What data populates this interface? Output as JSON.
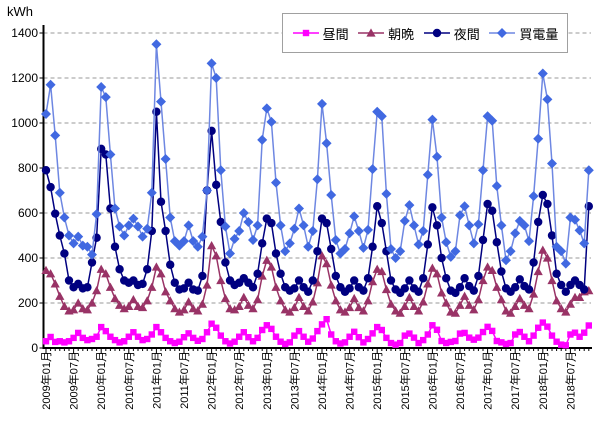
{
  "chart_data": {
    "type": "line",
    "unit_label": "kWh",
    "legend_position": "top",
    "grid": "horizontal-dashed",
    "colors": {
      "grid": "#999999",
      "axis": "#000000",
      "legend_border": "#a0a0a0",
      "background": "#ffffff"
    },
    "y_axis": {
      "min": 0,
      "max": 1400,
      "step": 200,
      "tick_labels": [
        "0",
        "200",
        "400",
        "600",
        "800",
        "1000",
        "1200",
        "1400"
      ]
    },
    "x_axis": {
      "months_per_label": 6,
      "total_points": 119,
      "start": "2009-01",
      "end": "2018-11",
      "tick_labels": [
        "2009年01月",
        "2009年07月",
        "2010年01月",
        "2010年07月",
        "2011年01月",
        "2011年07月",
        "2012年01月",
        "2012年07月",
        "2013年01月",
        "2013年07月",
        "2014年01月",
        "2014年07月",
        "2015年01月",
        "2015年07月",
        "2016年01月",
        "2016年07月",
        "2017年01月",
        "2017年07月",
        "2018年01月",
        "2018年07月"
      ]
    },
    "series": [
      {
        "id": "daytime",
        "name": "昼間",
        "marker": "square",
        "color": "#FF00FF",
        "line_color": "#FF00FF",
        "values": [
          30,
          49,
          27,
          30,
          25,
          30,
          45,
          67,
          45,
          35,
          40,
          50,
          93,
          75,
          50,
          35,
          25,
          30,
          50,
          70,
          50,
          35,
          40,
          60,
          93,
          70,
          45,
          30,
          22,
          28,
          48,
          65,
          45,
          32,
          40,
          70,
          108,
          90,
          55,
          30,
          20,
          28,
          50,
          70,
          48,
          30,
          45,
          80,
          101,
          85,
          50,
          28,
          18,
          25,
          55,
          75,
          50,
          28,
          42,
          75,
          105,
          128,
          60,
          30,
          20,
          25,
          50,
          72,
          48,
          25,
          40,
          65,
          93,
          80,
          45,
          22,
          15,
          22,
          55,
          64,
          46,
          22,
          35,
          60,
          101,
          81,
          31,
          22,
          27,
          31,
          64,
          67,
          46,
          37,
          46,
          71,
          94,
          76,
          31,
          25,
          18,
          22,
          60,
          71,
          50,
          30,
          55,
          90,
          113,
          95,
          55,
          28,
          15,
          12,
          60,
          68,
          50,
          68,
          100
        ]
      },
      {
        "id": "morning-evening",
        "name": "朝晩",
        "marker": "triangle",
        "color": "#993366",
        "line_color": "#993366",
        "values": [
          345,
          330,
          285,
          230,
          185,
          165,
          170,
          200,
          175,
          170,
          200,
          255,
          350,
          330,
          270,
          220,
          190,
          175,
          185,
          215,
          185,
          180,
          210,
          270,
          360,
          330,
          250,
          210,
          175,
          160,
          170,
          205,
          175,
          165,
          195,
          280,
          455,
          410,
          300,
          220,
          175,
          170,
          185,
          225,
          190,
          175,
          215,
          320,
          390,
          360,
          270,
          210,
          170,
          160,
          180,
          225,
          185,
          165,
          205,
          290,
          410,
          375,
          280,
          210,
          170,
          160,
          180,
          220,
          180,
          165,
          210,
          295,
          350,
          340,
          260,
          195,
          165,
          155,
          185,
          225,
          185,
          165,
          205,
          285,
          355,
          330,
          245,
          200,
          160,
          155,
          190,
          230,
          190,
          170,
          215,
          300,
          360,
          345,
          270,
          215,
          165,
          155,
          185,
          220,
          190,
          175,
          240,
          340,
          435,
          400,
          300,
          210,
          175,
          160,
          195,
          225,
          225,
          250,
          255
        ]
      },
      {
        "id": "night",
        "name": "夜間",
        "marker": "circle",
        "color": "#000080",
        "line_color": "#000080",
        "values": [
          790,
          715,
          597,
          500,
          420,
          300,
          270,
          285,
          265,
          270,
          380,
          490,
          885,
          860,
          620,
          450,
          350,
          300,
          290,
          300,
          280,
          285,
          350,
          520,
          1050,
          650,
          520,
          370,
          290,
          260,
          265,
          290,
          260,
          255,
          320,
          700,
          965,
          725,
          560,
          380,
          300,
          280,
          290,
          310,
          290,
          270,
          330,
          465,
          575,
          555,
          420,
          330,
          270,
          255,
          265,
          300,
          270,
          250,
          300,
          430,
          575,
          555,
          440,
          320,
          270,
          250,
          265,
          300,
          270,
          255,
          310,
          450,
          630,
          555,
          430,
          300,
          260,
          245,
          265,
          300,
          265,
          250,
          310,
          460,
          625,
          545,
          400,
          310,
          255,
          245,
          270,
          310,
          275,
          255,
          320,
          480,
          640,
          610,
          470,
          340,
          265,
          250,
          270,
          305,
          275,
          260,
          380,
          560,
          680,
          640,
          500,
          330,
          280,
          250,
          280,
          300,
          280,
          260,
          630
        ]
      },
      {
        "id": "purchased",
        "name": "買電量",
        "marker": "diamond",
        "color": "#4169E1",
        "line_color": "#6E87E2",
        "values": [
          1040,
          1170,
          945,
          690,
          580,
          500,
          465,
          495,
          455,
          450,
          415,
          595,
          1160,
          1115,
          860,
          620,
          540,
          500,
          545,
          575,
          540,
          495,
          530,
          690,
          1350,
          1095,
          840,
          580,
          475,
          455,
          475,
          545,
          475,
          450,
          495,
          700,
          1265,
          1200,
          790,
          540,
          420,
          485,
          520,
          600,
          560,
          480,
          545,
          925,
          1065,
          1005,
          735,
          545,
          430,
          465,
          530,
          620,
          545,
          450,
          520,
          750,
          1085,
          910,
          680,
          480,
          420,
          440,
          510,
          585,
          520,
          445,
          525,
          795,
          1050,
          1030,
          685,
          440,
          400,
          430,
          565,
          635,
          545,
          460,
          520,
          770,
          1015,
          850,
          580,
          470,
          405,
          430,
          590,
          630,
          545,
          465,
          550,
          790,
          1030,
          1010,
          720,
          545,
          390,
          430,
          510,
          565,
          545,
          475,
          675,
          930,
          1220,
          1105,
          820,
          450,
          430,
          375,
          580,
          570,
          523,
          465,
          790
        ]
      }
    ]
  }
}
